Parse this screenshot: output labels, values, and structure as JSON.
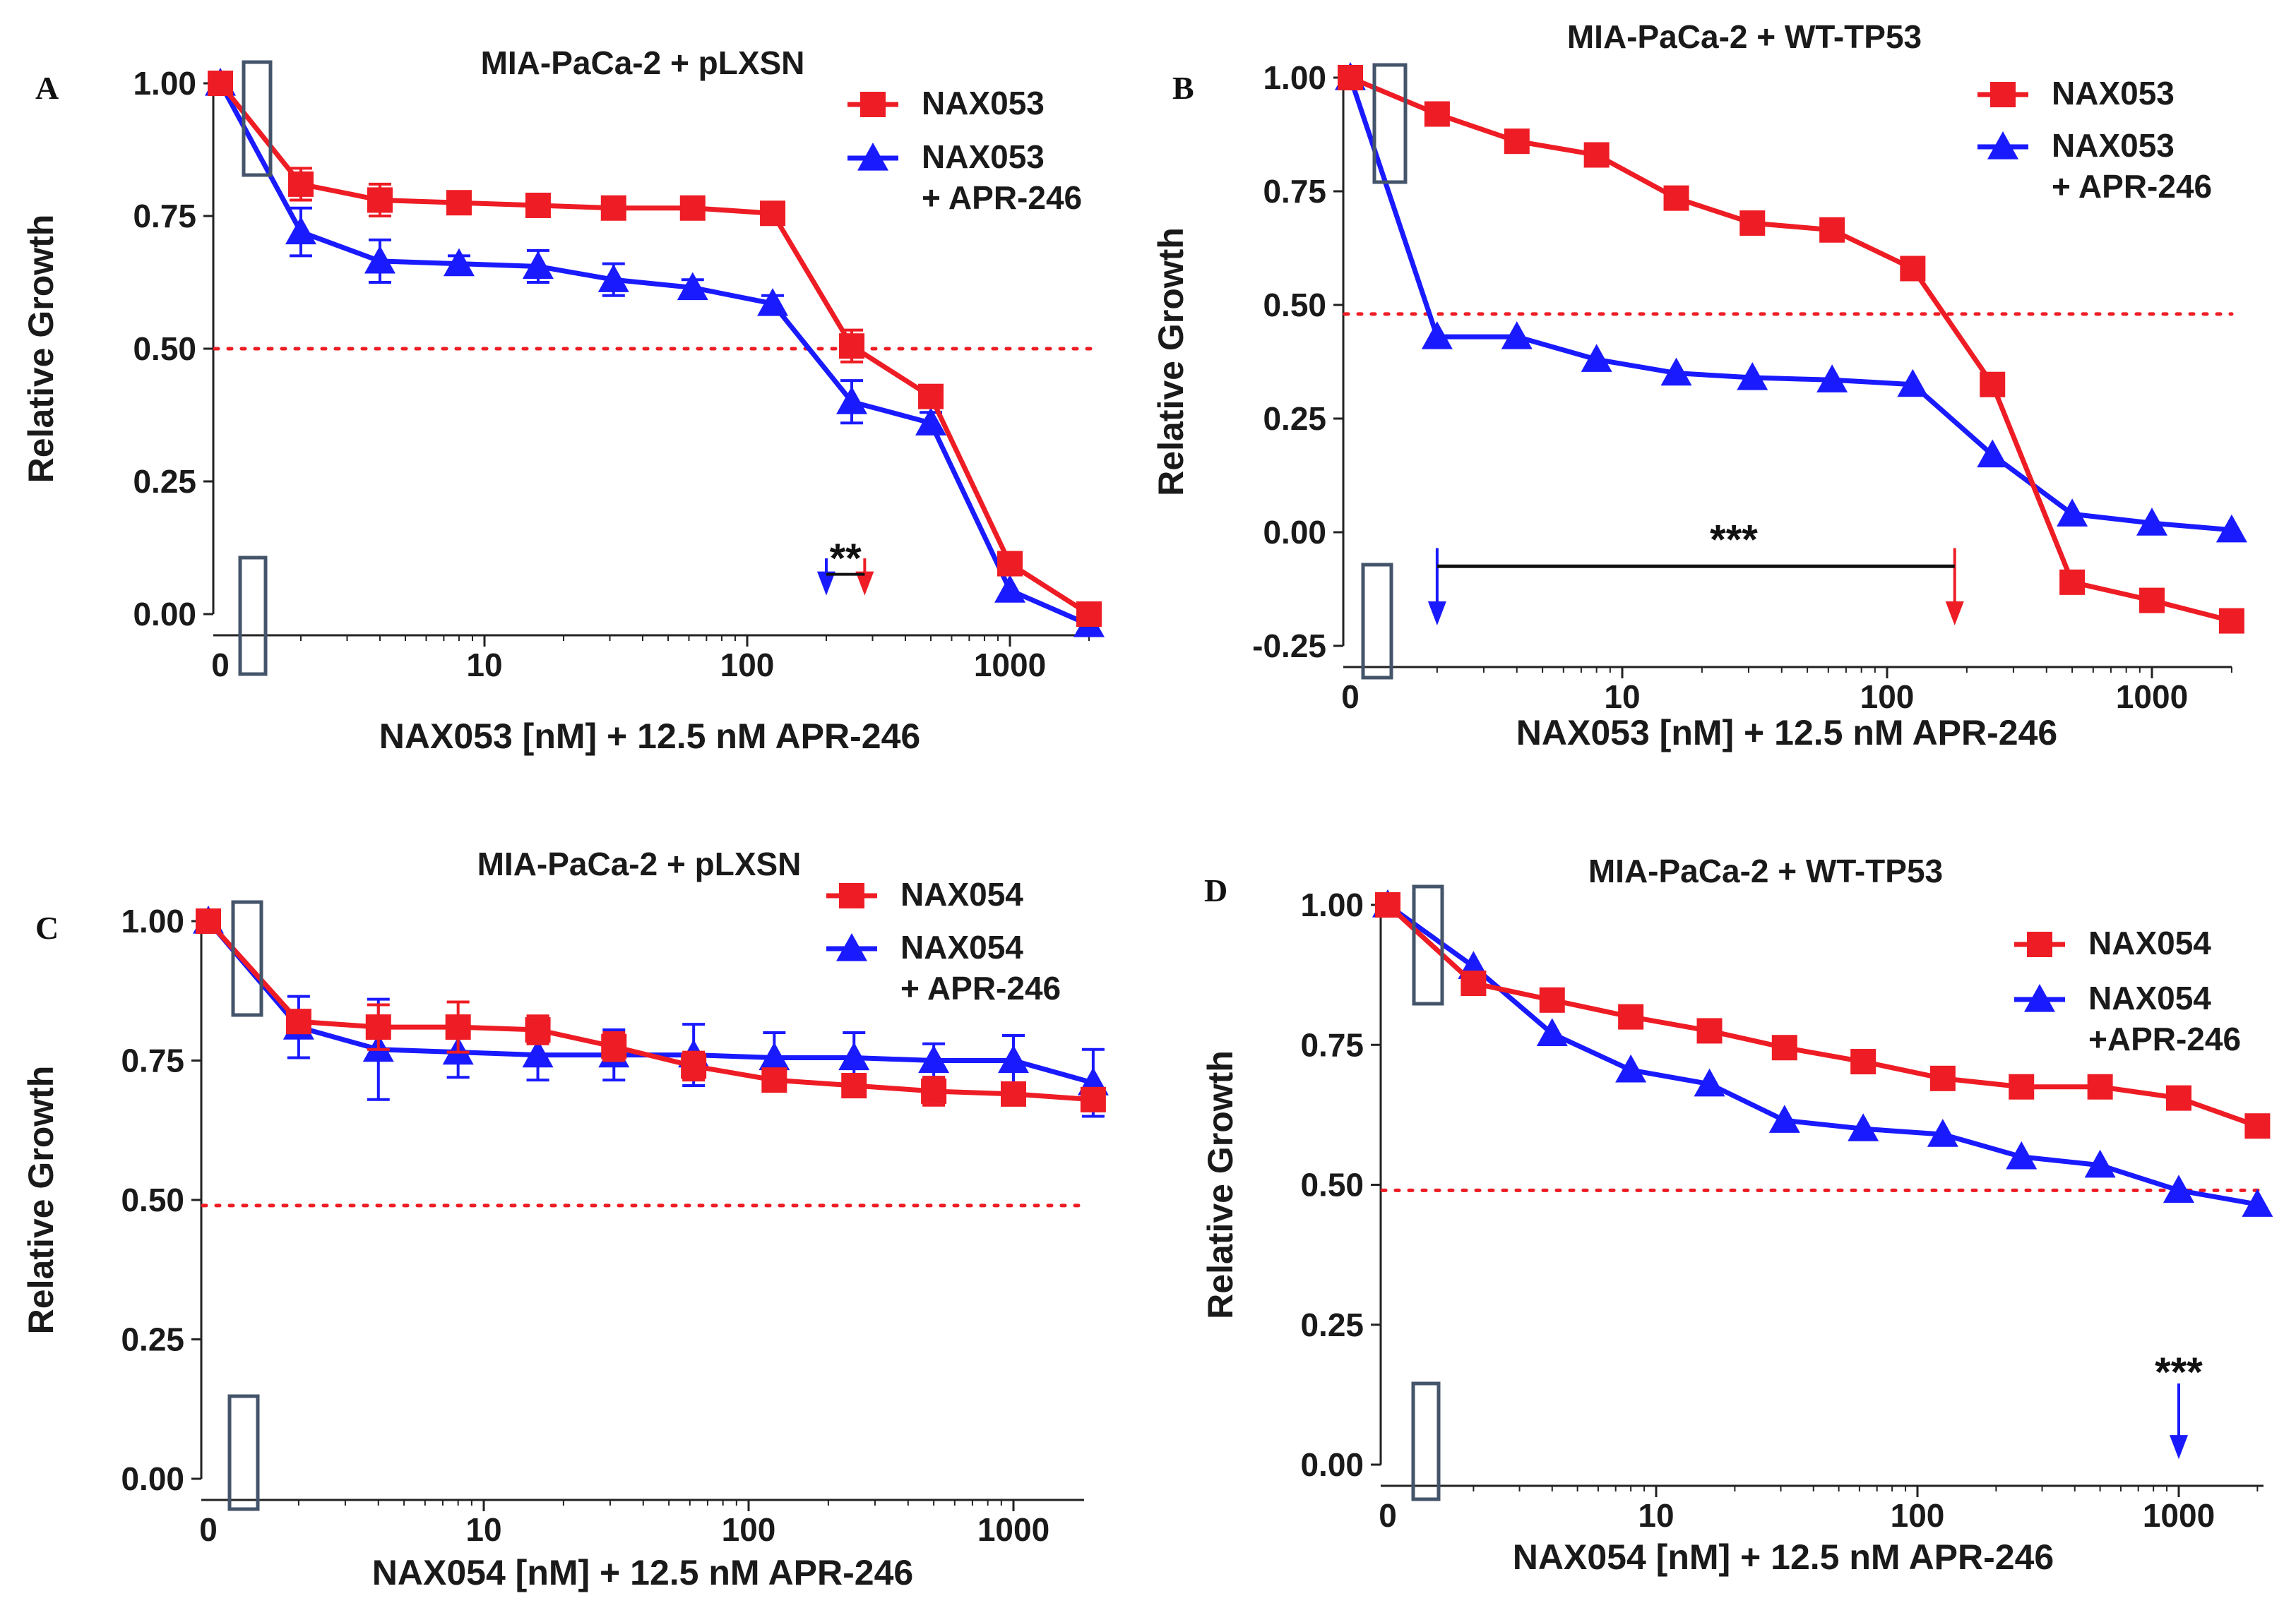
{
  "figure": "dose-response panels",
  "chart_data": [
    {
      "panel": "A",
      "type": "line",
      "title": "MIA-PaCa-2 + pLXSN",
      "xlabel": "NAX053 [nM] + 12.5 nM APR-246",
      "ylabel": "Relative Growth",
      "xscale": "log",
      "x_ticks": [
        "0",
        "10",
        "100",
        "1000"
      ],
      "y_ticks": [
        "0.00",
        "0.25",
        "0.50",
        "0.75",
        "1.00"
      ],
      "ylim": [
        0,
        1.0
      ],
      "x": [
        0,
        2,
        4,
        8,
        16,
        31,
        62,
        125,
        250,
        500,
        1000,
        2000
      ],
      "series": [
        {
          "name": "NAX053",
          "color": "#ee1c24",
          "marker": "square",
          "values": [
            1.0,
            0.81,
            0.78,
            0.775,
            0.77,
            0.765,
            0.765,
            0.755,
            0.505,
            0.41,
            0.095,
            0.0
          ],
          "errors": [
            0.01,
            0.03,
            0.03,
            0.02,
            0.01,
            0.01,
            0.01,
            0.01,
            0.03,
            0.02,
            0.01,
            0.01
          ]
        },
        {
          "name": "NAX053\n+ APR-246",
          "color": "#1a1aff",
          "marker": "triangle",
          "values": [
            1.0,
            0.72,
            0.665,
            0.66,
            0.655,
            0.63,
            0.615,
            0.585,
            0.4,
            0.36,
            0.045,
            -0.02
          ],
          "errors": [
            0.01,
            0.045,
            0.04,
            0.015,
            0.03,
            0.03,
            0.015,
            0.015,
            0.04,
            0.02,
            0.01,
            0.01
          ]
        }
      ],
      "hline": 0.5,
      "annotation": {
        "text": "**",
        "arrows_x": [
          200,
          280
        ]
      }
    },
    {
      "panel": "B",
      "type": "line",
      "title": "MIA-PaCa-2 + WT-TP53",
      "xlabel": "NAX053 [nM] + 12.5 nM APR-246",
      "ylabel": "Relative Growth",
      "xscale": "log",
      "x_ticks": [
        "0",
        "10",
        "100",
        "1000"
      ],
      "y_ticks": [
        "-0.25",
        "0.00",
        "0.25",
        "0.50",
        "0.75",
        "1.00"
      ],
      "ylim": [
        -0.25,
        1.0
      ],
      "x": [
        0,
        2,
        4,
        8,
        16,
        31,
        62,
        125,
        250,
        500,
        1000,
        2000
      ],
      "series": [
        {
          "name": "NAX053",
          "color": "#ee1c24",
          "marker": "square",
          "values": [
            1.0,
            0.92,
            0.86,
            0.83,
            0.735,
            0.68,
            0.665,
            0.58,
            0.325,
            -0.11,
            -0.15,
            -0.195
          ],
          "errors": [
            0.01,
            0.01,
            0.01,
            0.01,
            0.01,
            0.01,
            0.01,
            0.01,
            0.01,
            0.01,
            0.01,
            0.01
          ]
        },
        {
          "name": "NAX053\n+ APR-246",
          "color": "#1a1aff",
          "marker": "triangle",
          "values": [
            1.0,
            0.43,
            0.43,
            0.38,
            0.35,
            0.34,
            0.335,
            0.325,
            0.17,
            0.04,
            0.02,
            0.005
          ],
          "errors": [
            0.01,
            0.01,
            0.01,
            0.01,
            0.01,
            0.01,
            0.01,
            0.01,
            0.01,
            0.01,
            0.01,
            0.01
          ]
        }
      ],
      "hline": 0.48,
      "annotation": {
        "text": "***",
        "arrows_x": [
          2,
          180
        ]
      }
    },
    {
      "panel": "C",
      "type": "line",
      "title": "MIA-PaCa-2 + pLXSN",
      "xlabel": "NAX054 [nM] + 12.5 nM APR-246",
      "ylabel": "Relative Growth",
      "xscale": "log",
      "x_ticks": [
        "0",
        "10",
        "100",
        "1000"
      ],
      "y_ticks": [
        "0.00",
        "0.25",
        "0.50",
        "0.75",
        "1.00"
      ],
      "ylim": [
        0,
        1.0
      ],
      "x": [
        0,
        2,
        4,
        8,
        16,
        31,
        62,
        125,
        250,
        500,
        1000,
        2000
      ],
      "series": [
        {
          "name": "NAX054",
          "color": "#ee1c24",
          "marker": "square",
          "values": [
            1.0,
            0.82,
            0.81,
            0.81,
            0.805,
            0.775,
            0.74,
            0.715,
            0.705,
            0.695,
            0.69,
            0.68
          ],
          "errors": [
            0.01,
            0.02,
            0.04,
            0.045,
            0.025,
            0.025,
            0.025,
            0.015,
            0.02,
            0.025,
            0.01,
            0.02
          ]
        },
        {
          "name": "NAX054\n+ APR-246",
          "color": "#1a1aff",
          "marker": "triangle",
          "values": [
            1.0,
            0.81,
            0.77,
            0.765,
            0.76,
            0.76,
            0.76,
            0.755,
            0.755,
            0.75,
            0.75,
            0.71
          ],
          "errors": [
            0.01,
            0.055,
            0.09,
            0.045,
            0.045,
            0.045,
            0.055,
            0.045,
            0.045,
            0.03,
            0.045,
            0.06
          ]
        }
      ],
      "hline": 0.49
    },
    {
      "panel": "D",
      "type": "line",
      "title": "MIA-PaCa-2 + WT-TP53",
      "xlabel": "NAX054 [nM] + 12.5 nM APR-246",
      "ylabel": "Relative Growth",
      "xscale": "log",
      "x_ticks": [
        "0",
        "10",
        "100",
        "1000"
      ],
      "y_ticks": [
        "0.00",
        "0.25",
        "0.50",
        "0.75",
        "1.00"
      ],
      "ylim": [
        0,
        1.0
      ],
      "x": [
        0,
        2,
        4,
        8,
        16,
        31,
        62,
        125,
        250,
        500,
        1000,
        2000
      ],
      "series": [
        {
          "name": "NAX054",
          "color": "#ee1c24",
          "marker": "square",
          "values": [
            1.0,
            0.86,
            0.83,
            0.8,
            0.775,
            0.745,
            0.72,
            0.69,
            0.675,
            0.675,
            0.655,
            0.605
          ],
          "errors": [
            0.01,
            0.01,
            0.01,
            0.01,
            0.01,
            0.01,
            0.01,
            0.01,
            0.01,
            0.01,
            0.01,
            0.01
          ]
        },
        {
          "name": "NAX054\n+APR-246",
          "color": "#1a1aff",
          "marker": "triangle",
          "values": [
            1.0,
            0.89,
            0.77,
            0.705,
            0.68,
            0.615,
            0.6,
            0.59,
            0.55,
            0.535,
            0.49,
            0.465
          ],
          "errors": [
            0.01,
            0.01,
            0.01,
            0.01,
            0.01,
            0.01,
            0.01,
            0.01,
            0.01,
            0.01,
            0.01,
            0.01
          ]
        }
      ],
      "hline": 0.49,
      "annotation": {
        "text": "***",
        "arrows_x": [
          1000
        ]
      }
    }
  ]
}
